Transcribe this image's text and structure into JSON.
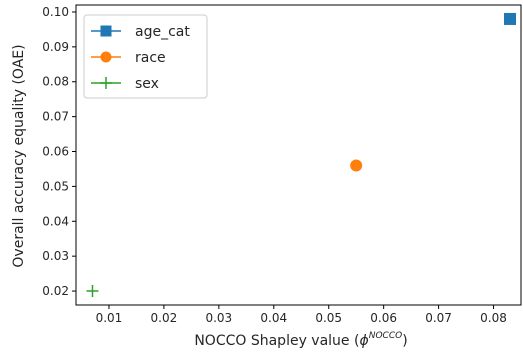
{
  "chart_data": {
    "type": "scatter",
    "xlabel": "NOCCO Shapley value (",
    "xlabel_symbol": "ϕ",
    "xlabel_superscript": "NOCCO",
    "xlabel_suffix": ")",
    "ylabel": "Overall accuracy equality (OAE)",
    "xlim": [
      0.004,
      0.085
    ],
    "ylim": [
      0.016,
      0.102
    ],
    "xticks": [
      0.01,
      0.02,
      0.03,
      0.04,
      0.05,
      0.06,
      0.07,
      0.08
    ],
    "xtick_labels": [
      "0.01",
      "0.02",
      "0.03",
      "0.04",
      "0.05",
      "0.06",
      "0.07",
      "0.08"
    ],
    "yticks": [
      0.02,
      0.03,
      0.04,
      0.05,
      0.06,
      0.07,
      0.08,
      0.09,
      0.1
    ],
    "ytick_labels": [
      "0.02",
      "0.03",
      "0.04",
      "0.05",
      "0.06",
      "0.07",
      "0.08",
      "0.09",
      "0.10"
    ],
    "grid": false,
    "legend_position": "top-left",
    "series": [
      {
        "name": "age_cat",
        "marker": "square",
        "color": "#1f77b4",
        "x": 0.083,
        "y": 0.098
      },
      {
        "name": "race",
        "marker": "circle",
        "color": "#ff7f0e",
        "x": 0.055,
        "y": 0.056
      },
      {
        "name": "sex",
        "marker": "plus",
        "color": "#2ca02c",
        "x": 0.007,
        "y": 0.02
      }
    ]
  }
}
